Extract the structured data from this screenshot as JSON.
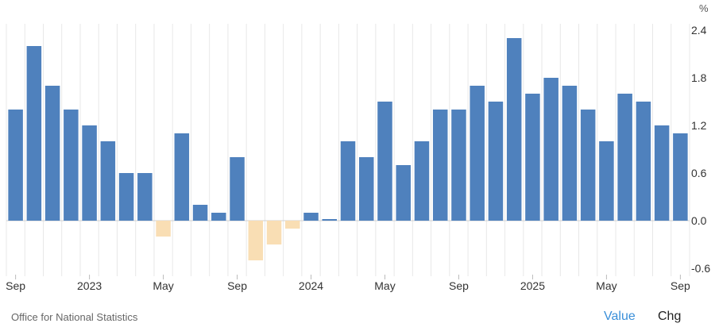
{
  "chart_data": {
    "type": "bar",
    "unit": "%",
    "categories": [
      "Sep 2022",
      "Oct 2022",
      "Nov 2022",
      "Dec 2022",
      "Jan 2023",
      "Feb 2023",
      "Mar 2023",
      "Apr 2023",
      "May 2023",
      "Jun 2023",
      "Jul 2023",
      "Aug 2023",
      "Sep 2023",
      "Oct 2023",
      "Nov 2023",
      "Dec 2023",
      "Jan 2024",
      "Feb 2024",
      "Mar 2024",
      "Apr 2024",
      "May 2024",
      "Jun 2024",
      "Jul 2024",
      "Aug 2024",
      "Sep 2024",
      "Oct 2024",
      "Nov 2024",
      "Dec 2024",
      "Jan 2025",
      "Feb 2025",
      "Mar 2025",
      "Apr 2025",
      "May 2025",
      "Jun 2025",
      "Jul 2025",
      "Aug 2025",
      "Sep 2025"
    ],
    "values": [
      1.4,
      2.2,
      1.7,
      1.4,
      1.2,
      1.0,
      0.6,
      0.6,
      -0.2,
      1.1,
      0.2,
      0.1,
      0.8,
      -0.5,
      -0.3,
      -0.1,
      0.1,
      0.0,
      1.0,
      0.8,
      1.5,
      0.7,
      1.0,
      1.4,
      1.4,
      1.7,
      1.5,
      2.3,
      1.6,
      1.8,
      1.7,
      1.4,
      1.0,
      1.6,
      1.5,
      1.2,
      1.1
    ],
    "x_tick_labels": [
      {
        "index": 0,
        "label": "Sep"
      },
      {
        "index": 4,
        "label": "2023"
      },
      {
        "index": 8,
        "label": "May"
      },
      {
        "index": 12,
        "label": "Sep"
      },
      {
        "index": 16,
        "label": "2024"
      },
      {
        "index": 20,
        "label": "May"
      },
      {
        "index": 24,
        "label": "Sep"
      },
      {
        "index": 28,
        "label": "2025"
      },
      {
        "index": 32,
        "label": "May"
      },
      {
        "index": 36,
        "label": "Sep"
      }
    ],
    "y_ticks": [
      2.4,
      1.8,
      1.2,
      0.6,
      0.0,
      -0.6
    ],
    "ylim": [
      -0.6,
      2.4
    ],
    "grid": true,
    "colors": {
      "positive": "#4f81bd",
      "negative": "#f9deb4",
      "grid": "#e8e8e8",
      "zero_line": "#d0d0d0"
    }
  },
  "footer": {
    "source": "Office for National Statistics",
    "value_toggle": "Value",
    "chg_toggle": "Chg"
  }
}
